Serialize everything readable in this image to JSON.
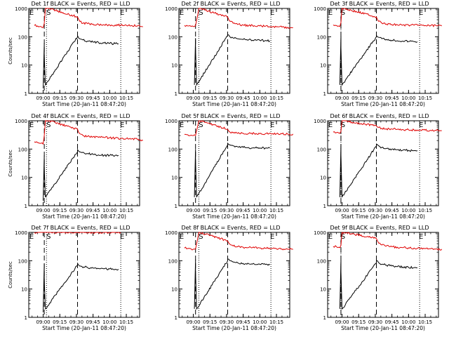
{
  "chart_data": [
    {
      "type": "line",
      "title": "Det 1f BLACK = Events, RED = LLD",
      "xlabel": "Start Time (20-Jan-11 08:47:20)",
      "ylabel": "Counts/sec",
      "yscale": "log",
      "ylim": [
        1,
        1000
      ],
      "ytick_labels": [
        "1",
        "10",
        "100",
        "1000"
      ],
      "xtick_labels": [
        "09:00",
        "09:15",
        "09:30",
        "09:45",
        "10:00",
        "10:15"
      ],
      "markers": [
        "E",
        "S",
        "E"
      ],
      "series": [
        {
          "name": "RED = LLD",
          "color": "#e00000",
          "x": [
            "08:52",
            "08:55",
            "08:57",
            "08:58",
            "09:00",
            "09:01",
            "09:02",
            "09:03",
            "09:04",
            "09:05",
            "09:31",
            "09:33",
            "09:36",
            "09:40",
            "09:45",
            "09:50",
            "09:55",
            "10:00",
            "10:05",
            "10:10",
            "10:15",
            "10:20",
            "10:25",
            "10:30"
          ],
          "y": [
            250,
            240,
            230,
            230,
            210,
            300,
            1000,
            1000,
            1000,
            1000,
            500,
            350,
            300,
            290,
            280,
            270,
            265,
            260,
            260,
            255,
            255,
            250,
            240,
            225
          ]
        },
        {
          "name": "BLACK = Events",
          "color": "#000000",
          "x": [
            "09:00",
            "09:01",
            "09:01",
            "09:02",
            "09:31",
            "09:31",
            "09:32",
            "09:35",
            "09:40",
            "09:45",
            "09:50",
            "09:55",
            "10:00",
            "10:05",
            "10:08"
          ],
          "y": [
            1.5,
            60,
            20,
            2,
            100,
            110,
            90,
            80,
            70,
            65,
            62,
            60,
            58,
            57,
            56
          ]
        }
      ]
    },
    {
      "type": "line",
      "title": "Det 2f BLACK = Events, RED = LLD",
      "xlabel": "Start Time (20-Jan-11 08:47:20)",
      "ylabel": "",
      "yscale": "log",
      "ylim": [
        1,
        1000
      ],
      "ytick_labels": [
        "1",
        "10",
        "100",
        "1000"
      ],
      "xtick_labels": [
        "09:00",
        "09:15",
        "09:30",
        "09:45",
        "10:00",
        "10:15"
      ],
      "markers": [
        "E",
        "S",
        "E"
      ],
      "series": [
        {
          "name": "RED = LLD",
          "color": "#e00000",
          "x": [
            "08:52",
            "08:55",
            "08:58",
            "09:00",
            "09:02",
            "09:03",
            "09:05",
            "09:06",
            "09:31",
            "09:33",
            "09:36",
            "09:40",
            "09:45",
            "09:50",
            "09:55",
            "10:00",
            "10:05",
            "10:10",
            "10:15",
            "10:20",
            "10:25",
            "10:30"
          ],
          "y": [
            250,
            240,
            230,
            230,
            250,
            380,
            1000,
            1000,
            500,
            350,
            300,
            270,
            260,
            250,
            245,
            240,
            235,
            230,
            225,
            220,
            215,
            210
          ]
        },
        {
          "name": "BLACK = Events",
          "color": "#000000",
          "x": [
            "09:01",
            "09:02",
            "09:02",
            "09:03",
            "09:31",
            "09:31",
            "09:33",
            "09:36",
            "09:40",
            "09:45",
            "09:50",
            "09:55",
            "10:00",
            "10:05",
            "10:09"
          ],
          "y": [
            2,
            90,
            40,
            2,
            110,
            120,
            100,
            90,
            85,
            80,
            78,
            76,
            75,
            73,
            72
          ]
        }
      ]
    },
    {
      "type": "line",
      "title": "Det 3f BLACK = Events, RED = LLD",
      "xlabel": "Start Time (20-Jan-11 08:47:20)",
      "ylabel": "",
      "yscale": "log",
      "ylim": [
        1,
        1000
      ],
      "ytick_labels": [
        "1",
        "10",
        "100",
        "1000"
      ],
      "xtick_labels": [
        "09:00",
        "09:15",
        "09:30",
        "09:45",
        "10:00",
        "10:15"
      ],
      "markers": [
        "E",
        "S",
        "E"
      ],
      "series": [
        {
          "name": "RED = LLD",
          "color": "#e00000",
          "x": [
            "08:52",
            "08:55",
            "08:57",
            "08:58",
            "08:59",
            "09:00",
            "09:02",
            "09:31",
            "09:33",
            "09:36",
            "09:40",
            "09:45",
            "09:50",
            "09:55",
            "10:00",
            "10:05",
            "10:10",
            "10:15",
            "10:20",
            "10:25",
            "10:30"
          ],
          "y": [
            260,
            250,
            240,
            230,
            320,
            1000,
            1000,
            500,
            350,
            300,
            280,
            270,
            265,
            260,
            258,
            255,
            252,
            250,
            248,
            245,
            240
          ]
        },
        {
          "name": "BLACK = Events",
          "color": "#000000",
          "x": [
            "08:58",
            "08:59",
            "08:59",
            "09:00",
            "09:31",
            "09:31",
            "09:33",
            "09:36",
            "09:40",
            "09:45",
            "09:50",
            "09:55",
            "10:00",
            "10:05",
            "10:08"
          ],
          "y": [
            2,
            110,
            40,
            2,
            100,
            110,
            95,
            85,
            80,
            75,
            72,
            70,
            68,
            67,
            66
          ]
        }
      ]
    },
    {
      "type": "line",
      "title": "Det 4f BLACK = Events, RED = LLD",
      "xlabel": "Start Time (20-Jan-11 08:47:20)",
      "ylabel": "Counts/sec",
      "yscale": "log",
      "ylim": [
        1,
        1000
      ],
      "ytick_labels": [
        "1",
        "10",
        "100",
        "1000"
      ],
      "xtick_labels": [
        "09:00",
        "09:15",
        "09:30",
        "09:45",
        "10:00",
        "10:15"
      ],
      "markers": [
        "E",
        "S",
        "E"
      ],
      "series": [
        {
          "name": "RED = LLD",
          "color": "#e00000",
          "x": [
            "08:52",
            "08:55",
            "08:57",
            "08:58",
            "09:00",
            "09:01",
            "09:02",
            "09:03",
            "09:05",
            "09:31",
            "09:33",
            "09:36",
            "09:40",
            "09:45",
            "09:50",
            "09:55",
            "10:00",
            "10:05",
            "10:10",
            "10:15",
            "10:20",
            "10:25",
            "10:30"
          ],
          "y": [
            180,
            170,
            160,
            160,
            150,
            300,
            1000,
            1000,
            1000,
            500,
            350,
            300,
            280,
            270,
            260,
            255,
            250,
            245,
            240,
            235,
            230,
            220,
            200
          ]
        },
        {
          "name": "BLACK = Events",
          "color": "#000000",
          "x": [
            "09:00",
            "09:01",
            "09:01",
            "09:02",
            "09:31",
            "09:31",
            "09:32",
            "09:35",
            "09:40",
            "09:45",
            "09:50",
            "09:55",
            "10:00",
            "10:05",
            "10:08"
          ],
          "y": [
            1.5,
            60,
            20,
            2,
            80,
            95,
            85,
            75,
            70,
            65,
            62,
            60,
            60,
            60,
            60
          ]
        }
      ]
    },
    {
      "type": "line",
      "title": "Det 5f BLACK = Events, RED = LLD",
      "xlabel": "Start Time (20-Jan-11 08:47:20)",
      "ylabel": "",
      "yscale": "log",
      "ylim": [
        1,
        1000
      ],
      "ytick_labels": [
        "1",
        "10",
        "100",
        "1000"
      ],
      "xtick_labels": [
        "09:00",
        "09:15",
        "09:30",
        "09:45",
        "10:00",
        "10:15"
      ],
      "markers": [
        "E",
        "S",
        "E"
      ],
      "series": [
        {
          "name": "RED = LLD",
          "color": "#e00000",
          "x": [
            "08:52",
            "08:55",
            "08:58",
            "09:00",
            "09:02",
            "09:03",
            "09:05",
            "09:06",
            "09:31",
            "09:33",
            "09:36",
            "09:40",
            "09:45",
            "09:50",
            "09:55",
            "10:00",
            "10:05",
            "10:10",
            "10:15",
            "10:20",
            "10:25",
            "10:30"
          ],
          "y": [
            330,
            320,
            310,
            300,
            300,
            450,
            1000,
            1000,
            500,
            400,
            370,
            360,
            360,
            355,
            355,
            350,
            350,
            350,
            345,
            345,
            340,
            340
          ]
        },
        {
          "name": "BLACK = Events",
          "color": "#000000",
          "x": [
            "09:01",
            "09:02",
            "09:02",
            "09:03",
            "09:31",
            "09:31",
            "09:33",
            "09:36",
            "09:40",
            "09:45",
            "09:50",
            "09:55",
            "10:00",
            "10:05",
            "10:09"
          ],
          "y": [
            2,
            100,
            40,
            2,
            140,
            160,
            140,
            130,
            120,
            115,
            112,
            110,
            110,
            108,
            108
          ]
        }
      ]
    },
    {
      "type": "line",
      "title": "Det 6f BLACK = Events, RED = LLD",
      "xlabel": "Start Time (20-Jan-11 08:47:20)",
      "ylabel": "",
      "yscale": "log",
      "ylim": [
        1,
        1000
      ],
      "ytick_labels": [
        "1",
        "10",
        "100",
        "1000"
      ],
      "xtick_labels": [
        "09:00",
        "09:15",
        "09:30",
        "09:45",
        "10:00",
        "10:15"
      ],
      "markers": [
        "E",
        "S",
        "E"
      ],
      "series": [
        {
          "name": "RED = LLD",
          "color": "#e00000",
          "x": [
            "08:52",
            "08:55",
            "08:57",
            "08:58",
            "08:59",
            "09:00",
            "09:02",
            "09:31",
            "09:33",
            "09:36",
            "09:40",
            "09:45",
            "09:50",
            "09:55",
            "10:00",
            "10:05",
            "10:10",
            "10:15",
            "10:20",
            "10:25",
            "10:30"
          ],
          "y": [
            400,
            380,
            370,
            360,
            420,
            1000,
            1000,
            650,
            580,
            540,
            520,
            510,
            500,
            490,
            480,
            475,
            470,
            465,
            460,
            455,
            450
          ]
        },
        {
          "name": "BLACK = Events",
          "color": "#000000",
          "x": [
            "08:58",
            "08:59",
            "08:59",
            "09:00",
            "09:31",
            "09:31",
            "09:33",
            "09:36",
            "09:40",
            "09:45",
            "09:50",
            "09:55",
            "10:00",
            "10:05",
            "10:08"
          ],
          "y": [
            2,
            150,
            60,
            2,
            130,
            150,
            130,
            115,
            105,
            100,
            95,
            92,
            90,
            88,
            88
          ]
        }
      ]
    },
    {
      "type": "line",
      "title": "Det 7f BLACK = Events, RED = LLD",
      "xlabel": "Start Time (20-Jan-11 08:47:20)",
      "ylabel": "Counts/sec",
      "yscale": "log",
      "ylim": [
        1,
        1000
      ],
      "ytick_labels": [
        "1",
        "10",
        "100",
        "1000"
      ],
      "xtick_labels": [
        "09:00",
        "09:15",
        "09:30",
        "09:45",
        "10:00",
        "10:15"
      ],
      "markers": [
        "E",
        "S",
        "E"
      ],
      "series": [
        {
          "name": "RED = LLD",
          "color": "#e00000",
          "x": [
            "08:52",
            "08:55",
            "08:58",
            "09:00",
            "09:02",
            "09:03",
            "09:05",
            "09:31",
            "09:35",
            "09:40",
            "09:45",
            "09:50",
            "09:55",
            "10:00",
            "10:05",
            "10:10"
          ],
          "y": [
            1000,
            1000,
            1000,
            1000,
            1000,
            1000,
            1000,
            1000,
            1000,
            1000,
            1000,
            1000,
            1000,
            1000,
            1000,
            1000
          ]
        },
        {
          "name": "BLACK = Events",
          "color": "#000000",
          "x": [
            "09:00",
            "09:01",
            "09:01",
            "09:02",
            "09:31",
            "09:31",
            "09:32",
            "09:35",
            "09:40",
            "09:45",
            "09:50",
            "09:55",
            "10:00",
            "10:05",
            "10:08"
          ],
          "y": [
            1.5,
            80,
            20,
            2,
            70,
            80,
            70,
            62,
            58,
            55,
            53,
            52,
            51,
            50,
            50
          ]
        }
      ]
    },
    {
      "type": "line",
      "title": "Det 8f BLACK = Events, RED = LLD",
      "xlabel": "Start Time (20-Jan-11 08:47:20)",
      "ylabel": "",
      "yscale": "log",
      "ylim": [
        1,
        1000
      ],
      "ytick_labels": [
        "1",
        "10",
        "100",
        "1000"
      ],
      "xtick_labels": [
        "09:00",
        "09:15",
        "09:30",
        "09:45",
        "10:00",
        "10:15"
      ],
      "markers": [
        "E",
        "S",
        "E"
      ],
      "series": [
        {
          "name": "RED = LLD",
          "color": "#e00000",
          "x": [
            "08:52",
            "08:55",
            "08:58",
            "09:00",
            "09:02",
            "09:03",
            "09:05",
            "09:06",
            "09:31",
            "09:33",
            "09:36",
            "09:40",
            "09:45",
            "09:50",
            "09:55",
            "10:00",
            "10:05",
            "10:10",
            "10:15",
            "10:20",
            "10:25",
            "10:30"
          ],
          "y": [
            280,
            270,
            260,
            255,
            260,
            400,
            1000,
            1000,
            500,
            380,
            330,
            310,
            300,
            290,
            285,
            280,
            275,
            270,
            265,
            260,
            255,
            250
          ]
        },
        {
          "name": "BLACK = Events",
          "color": "#000000",
          "x": [
            "09:01",
            "09:02",
            "09:02",
            "09:03",
            "09:31",
            "09:31",
            "09:33",
            "09:36",
            "09:40",
            "09:45",
            "09:50",
            "09:55",
            "10:00",
            "10:05",
            "10:09"
          ],
          "y": [
            2,
            110,
            40,
            2,
            100,
            115,
            100,
            90,
            85,
            80,
            78,
            76,
            75,
            73,
            72
          ]
        }
      ]
    },
    {
      "type": "line",
      "title": "Det 9f BLACK = Events, RED = LLD",
      "xlabel": "Start Time (20-Jan-11 08:47:20)",
      "ylabel": "",
      "yscale": "log",
      "ylim": [
        1,
        1000
      ],
      "ytick_labels": [
        "1",
        "10",
        "100",
        "1000"
      ],
      "xtick_labels": [
        "09:00",
        "09:15",
        "09:30",
        "09:45",
        "10:00",
        "10:15"
      ],
      "markers": [
        "E",
        "S",
        "E"
      ],
      "series": [
        {
          "name": "RED = LLD",
          "color": "#e00000",
          "x": [
            "08:52",
            "08:55",
            "08:57",
            "08:58",
            "08:59",
            "09:00",
            "09:02",
            "09:31",
            "09:33",
            "09:36",
            "09:40",
            "09:45",
            "09:50",
            "09:55",
            "10:00",
            "10:05",
            "10:10",
            "10:15",
            "10:20",
            "10:25",
            "10:30"
          ],
          "y": [
            320,
            310,
            300,
            290,
            350,
            1000,
            1000,
            600,
            420,
            360,
            330,
            310,
            300,
            290,
            285,
            280,
            275,
            270,
            265,
            260,
            255
          ]
        },
        {
          "name": "BLACK = Events",
          "color": "#000000",
          "x": [
            "08:58",
            "08:59",
            "08:59",
            "09:00",
            "09:31",
            "09:31",
            "09:33",
            "09:36",
            "09:40",
            "09:45",
            "09:50",
            "09:55",
            "10:00",
            "10:05",
            "10:08"
          ],
          "y": [
            2,
            110,
            40,
            2,
            85,
            100,
            85,
            75,
            70,
            65,
            62,
            60,
            58,
            57,
            56
          ]
        }
      ]
    }
  ]
}
